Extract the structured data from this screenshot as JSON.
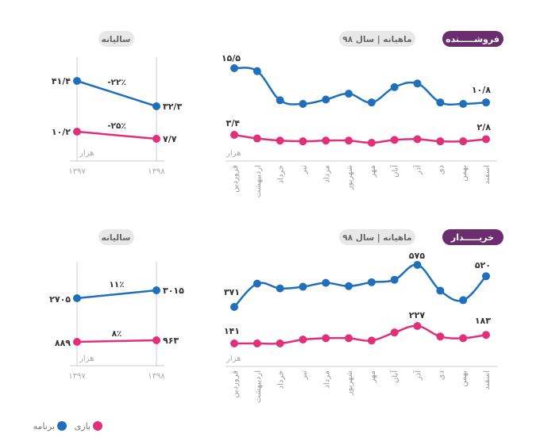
{
  "colors": {
    "app": "#1f6fba",
    "game": "#e0307a",
    "badge": "#6b2d6e",
    "pill": "#e8e8e8"
  },
  "legend": {
    "app": "برنامه",
    "game": "بازی"
  },
  "chart_data": [
    {
      "type": "line",
      "title": "فروشـــــنده",
      "subtitle": "ماهیانه | سال ۹۸",
      "unit": "هزار",
      "categories": [
        "فروردین",
        "اردیبهشت",
        "خرداد",
        "تیر",
        "مرداد",
        "شهریور",
        "مهر",
        "آبان",
        "آذر",
        "دی",
        "بهمن",
        "اسفند"
      ],
      "series": [
        {
          "name": "برنامه",
          "values": [
            15.5,
            15.1,
            11.1,
            10.6,
            11.2,
            12.0,
            10.8,
            12.9,
            13.4,
            10.8,
            10.6,
            10.8
          ],
          "labels": {
            "first": "۱۵/۵",
            "last": "۱۰/۸"
          }
        },
        {
          "name": "بازی",
          "values": [
            3.4,
            2.9,
            2.6,
            2.5,
            2.6,
            2.6,
            2.3,
            2.7,
            2.8,
            2.5,
            2.5,
            2.8
          ],
          "labels": {
            "first": "۳/۴",
            "last": "۲/۸"
          }
        }
      ]
    },
    {
      "type": "line",
      "title": "سالیانه",
      "unit": "هزار",
      "categories": [
        "۱۳۹۷",
        "۱۳۹۸"
      ],
      "series": [
        {
          "name": "برنامه",
          "values": [
            41.4,
            32.3
          ],
          "labels": {
            "first": "۴۱/۴",
            "last": "۳۲/۳"
          },
          "change": "-۲۲٪"
        },
        {
          "name": "بازی",
          "values": [
            10.2,
            7.7
          ],
          "labels": {
            "first": "۱۰/۲",
            "last": "۷/۷"
          },
          "change": "-۲۵٪"
        }
      ]
    },
    {
      "type": "line",
      "title": "خریـــــدار",
      "subtitle": "ماهیانه | سال ۹۸",
      "unit": "هزار",
      "categories": [
        "فروردین",
        "اردیبهشت",
        "خرداد",
        "تیر",
        "مرداد",
        "شهریور",
        "مهر",
        "آبان",
        "آذر",
        "دی",
        "بهمن",
        "اسفند"
      ],
      "series": [
        {
          "name": "برنامه",
          "values": [
            371,
            484,
            461,
            469,
            488,
            472,
            491,
            503,
            575,
            450,
            404,
            520
          ],
          "labels": {
            "first": "۳۷۱",
            "peak": "۵۷۵",
            "last": "۵۲۰"
          }
        },
        {
          "name": "بازی",
          "values": [
            141,
            141,
            141,
            160,
            167,
            167,
            155,
            195,
            227,
            175,
            167,
            183
          ],
          "labels": {
            "first": "۱۴۱",
            "peak": "۲۲۷",
            "last": "۱۸۳"
          }
        }
      ]
    },
    {
      "type": "line",
      "title": "سالیانه",
      "unit": "هزار",
      "categories": [
        "۱۳۹۷",
        "۱۳۹۸"
      ],
      "series": [
        {
          "name": "برنامه",
          "values": [
            2705,
            3015
          ],
          "labels": {
            "first": "۲۷۰۵",
            "last": "۳۰۱۵"
          },
          "change": "۱۱٪"
        },
        {
          "name": "بازی",
          "values": [
            889,
            963
          ],
          "labels": {
            "first": "۸۸۹",
            "last": "۹۶۳"
          },
          "change": "۸٪"
        }
      ]
    }
  ]
}
